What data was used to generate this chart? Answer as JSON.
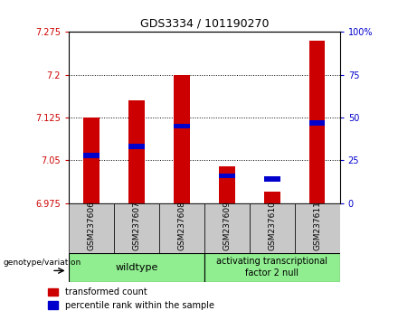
{
  "title": "GDS3334 / 101190270",
  "samples": [
    "GSM237606",
    "GSM237607",
    "GSM237608",
    "GSM237609",
    "GSM237610",
    "GSM237611"
  ],
  "transformed_count": [
    7.125,
    7.155,
    7.2,
    7.04,
    6.995,
    7.26
  ],
  "percentile_rank": [
    28,
    33,
    45,
    16,
    14,
    47
  ],
  "y_min": 6.975,
  "y_max": 7.275,
  "y_ticks": [
    6.975,
    7.05,
    7.125,
    7.2,
    7.275
  ],
  "y_tick_labels": [
    "6.975",
    "7.05",
    "7.125",
    "7.2",
    "7.275"
  ],
  "y2_ticks": [
    0,
    25,
    50,
    75,
    100
  ],
  "y2_tick_labels": [
    "0",
    "25",
    "50",
    "75",
    "100%"
  ],
  "bar_width": 0.35,
  "bar_color_red": "#cc0000",
  "bar_color_blue": "#0000cc",
  "background_plot": "#ffffff",
  "background_xlabel": "#c8c8c8",
  "background_group": "#90ee90",
  "left_tick_color": "#cc0000",
  "right_tick_color": "#0000cc",
  "genotype_label": "genotype/variation",
  "legend_entries": [
    "transformed count",
    "percentile rank within the sample"
  ],
  "legend_colors": [
    "#cc0000",
    "#0000cc"
  ],
  "wildtype_label": "wildtype",
  "atf_label": "activating transcriptional\nfactor 2 null"
}
